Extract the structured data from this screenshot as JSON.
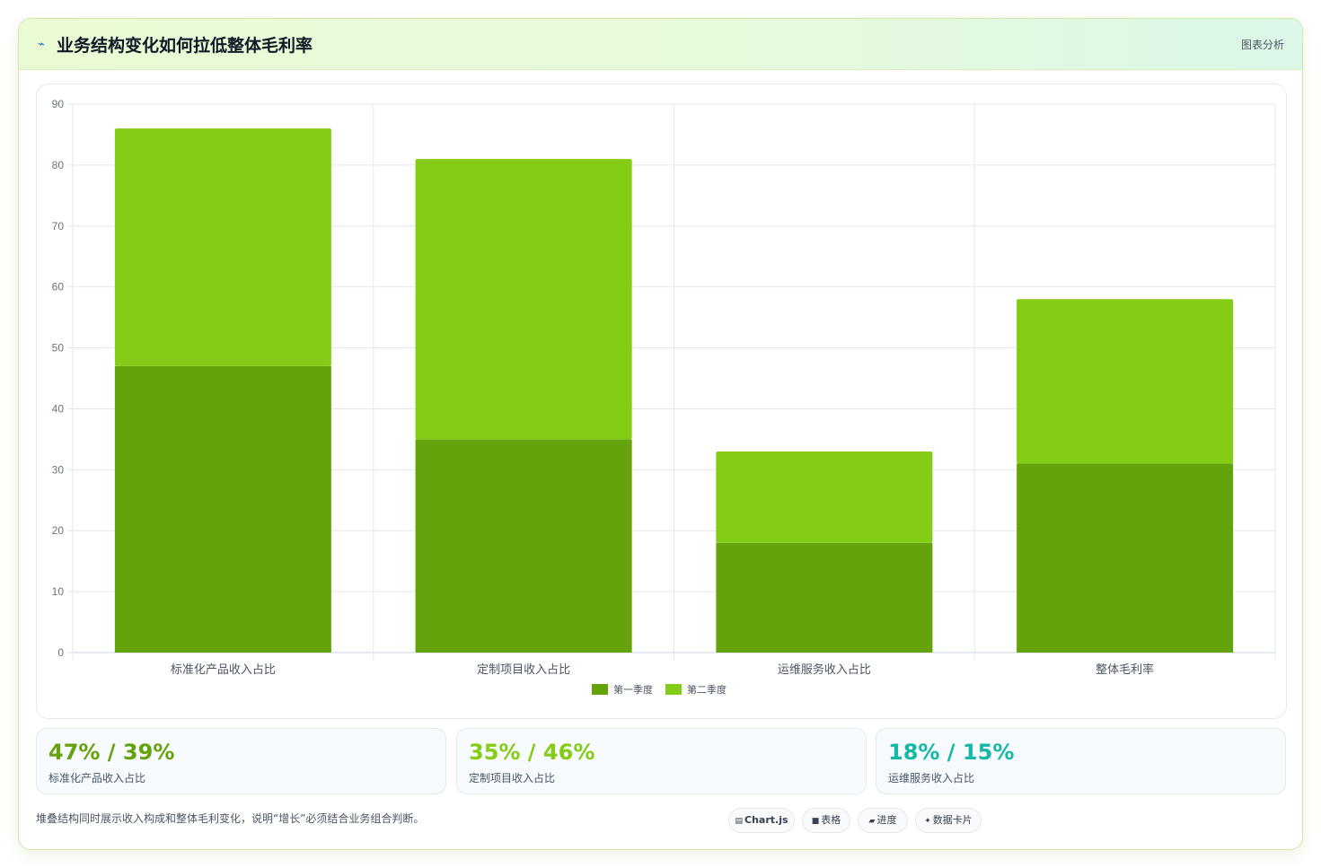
{
  "header": {
    "icon": "trend-icon",
    "icon_glyph": "⌁",
    "title": "业务结构变化如何拉低整体毛利率",
    "tag": "图表分析"
  },
  "colors": {
    "q1": "#65a30d",
    "q2": "#84cc16",
    "stat1": "#65a30d",
    "stat2": "#84cc16",
    "stat3": "#14b8a6"
  },
  "chart_data": {
    "type": "bar",
    "stacked": true,
    "categories": [
      "标准化产品收入占比",
      "定制项目收入占比",
      "运维服务收入占比",
      "整体毛利率"
    ],
    "series": [
      {
        "name": "第一季度",
        "values": [
          47,
          35,
          18,
          31
        ]
      },
      {
        "name": "第二季度",
        "values": [
          39,
          46,
          15,
          27
        ]
      }
    ],
    "ylim": [
      0,
      90
    ],
    "yticks": [
      0,
      10,
      20,
      30,
      40,
      50,
      60,
      70,
      80,
      90
    ],
    "grid": true,
    "legend": "bottom"
  },
  "stats": [
    {
      "value": "47% / 39%",
      "label": "标准化产品收入占比"
    },
    {
      "value": "35% / 46%",
      "label": "定制项目收入占比"
    },
    {
      "value": "18% / 15%",
      "label": "运维服务收入占比"
    }
  ],
  "footer": {
    "text": "堆叠结构同时展示收入构成和整体毛利变化，说明“增长”必须结合业务组合判断。",
    "chips": [
      {
        "icon": "chart-icon",
        "glyph": "▤",
        "label": "Chart.js"
      },
      {
        "icon": "table-icon",
        "glyph": "■",
        "label": "表格"
      },
      {
        "icon": "progress-icon",
        "glyph": "▰",
        "label": "进度"
      },
      {
        "icon": "sparkle-icon",
        "glyph": "✦",
        "label": "数据卡片"
      }
    ]
  }
}
